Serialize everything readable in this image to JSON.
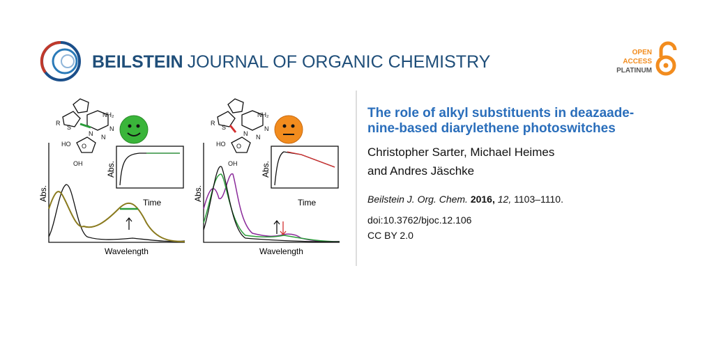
{
  "header": {
    "brand_bold": "BEILSTEIN",
    "brand_rest": "JOURNAL OF ORGANIC CHEMISTRY",
    "badge": [
      "OPEN",
      "ACCESS",
      "PLATINUM"
    ]
  },
  "article": {
    "title_lines": [
      "The role of alkyl substituents in deazaade-",
      "nine-based diarylethene photoswitches"
    ],
    "author_lines": [
      "Christopher Sarter, Michael Heimes",
      "and Andres Jäschke"
    ],
    "citation": {
      "journal": "Beilstein J. Org. Chem.",
      "year": "2016,",
      "volume": "12,",
      "pages": "1103–1110."
    },
    "doi": "doi:10.3762/bjoc.12.106",
    "license": "CC BY 2.0"
  },
  "figure": {
    "panels": [
      {
        "y_label": "Abs.",
        "x_label": "Wavelength",
        "inset_y_label": "Abs.",
        "inset_x_label": "Time",
        "chem": [
          "R",
          "S",
          "N",
          "NH₂",
          "N",
          "N",
          "HO",
          "O",
          "OH"
        ]
      },
      {
        "y_label": "Abs.",
        "x_label": "Wavelength",
        "inset_y_label": "Abs.",
        "inset_x_label": "Time",
        "chem": [
          "R",
          "S",
          "N",
          "NH₂",
          "N",
          "N",
          "HO",
          "O",
          "OH"
        ]
      }
    ]
  }
}
